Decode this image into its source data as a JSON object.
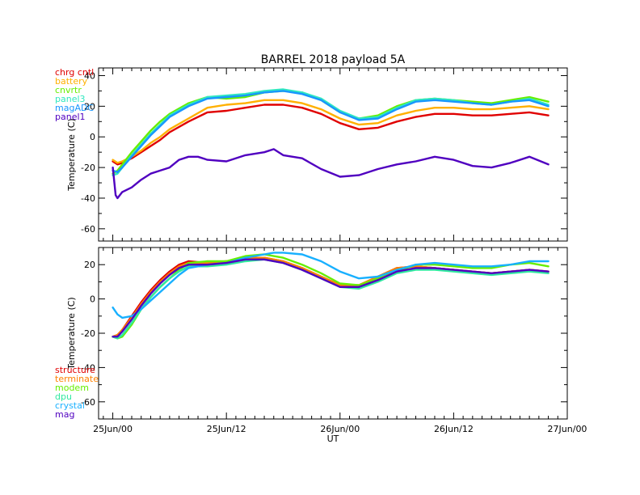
{
  "chart_data": [
    {
      "type": "line",
      "title": "BARREL 2018 payload 5A",
      "ylabel": "Temperature (C)",
      "xlabel": "",
      "x_ticks": [
        "25Jun/00",
        "25Jun/12",
        "26Jun/00",
        "26Jun/12",
        "27Jun/00"
      ],
      "y_ticks": [
        40,
        20,
        0,
        -20,
        -40,
        -60
      ],
      "ylim": [
        -68,
        45
      ],
      "xlim_hours": [
        -1.5,
        48
      ],
      "grid": false,
      "legend_position": "top-left",
      "series": [
        {
          "name": "chrg cntl",
          "color": "#e00000",
          "x": [
            0,
            0.5,
            1,
            2,
            3,
            4,
            5,
            6,
            8,
            10,
            12,
            14,
            16,
            18,
            20,
            22,
            24,
            26,
            28,
            30,
            32,
            34,
            36,
            38,
            40,
            42,
            44,
            46
          ],
          "y": [
            -16,
            -18,
            -17,
            -14,
            -10,
            -6,
            -2,
            3,
            10,
            16,
            17,
            19,
            21,
            21,
            19,
            15,
            9,
            5,
            6,
            10,
            13,
            15,
            15,
            14,
            14,
            15,
            16,
            14
          ]
        },
        {
          "name": "battery",
          "color": "#ffb000",
          "x": [
            0,
            0.5,
            1,
            2,
            3,
            4,
            5,
            6,
            8,
            10,
            12,
            14,
            16,
            18,
            20,
            22,
            24,
            26,
            28,
            30,
            32,
            34,
            36,
            38,
            40,
            42,
            44,
            46
          ],
          "y": [
            -15,
            -17,
            -16,
            -13,
            -9,
            -4,
            0,
            5,
            12,
            19,
            21,
            22,
            24,
            24,
            22,
            18,
            12,
            8,
            9,
            14,
            17,
            19,
            19,
            18,
            18,
            19,
            20,
            18
          ]
        },
        {
          "name": "cnvrtr",
          "color": "#66ee00",
          "x": [
            0,
            0.5,
            1,
            2,
            3,
            4,
            5,
            6,
            8,
            10,
            12,
            14,
            16,
            18,
            20,
            22,
            24,
            26,
            28,
            30,
            32,
            34,
            36,
            38,
            40,
            42,
            44,
            46
          ],
          "y": [
            -24,
            -22,
            -18,
            -10,
            -3,
            4,
            10,
            15,
            22,
            26,
            25,
            26,
            29,
            30,
            29,
            24,
            16,
            12,
            14,
            20,
            24,
            25,
            24,
            23,
            22,
            24,
            26,
            23
          ]
        },
        {
          "name": "panel3",
          "color": "#30e8c0",
          "x": [
            0,
            0.5,
            1,
            2,
            3,
            4,
            5,
            6,
            8,
            10,
            12,
            14,
            16,
            18,
            20,
            22,
            24,
            26,
            28,
            30,
            32,
            34,
            36,
            38,
            40,
            42,
            44,
            46
          ],
          "y": [
            -25,
            -24,
            -20,
            -12,
            -5,
            2,
            8,
            14,
            21,
            26,
            27,
            28,
            30,
            31,
            29,
            25,
            17,
            12,
            13,
            19,
            24,
            25,
            24,
            22,
            21,
            23,
            25,
            21
          ]
        },
        {
          "name": "magADC",
          "color": "#1896ff",
          "x": [
            0,
            0.5,
            1,
            2,
            3,
            4,
            5,
            6,
            8,
            10,
            12,
            14,
            16,
            18,
            20,
            22,
            24,
            26,
            28,
            30,
            32,
            34,
            36,
            38,
            40,
            42,
            44,
            46
          ],
          "y": [
            -22,
            -23,
            -20,
            -13,
            -6,
            1,
            7,
            13,
            20,
            25,
            26,
            27,
            29,
            30,
            28,
            24,
            16,
            11,
            12,
            18,
            23,
            24,
            23,
            22,
            21,
            23,
            24,
            20
          ]
        },
        {
          "name": "panel1",
          "color": "#5000c0",
          "x": [
            0,
            0.3,
            0.5,
            1,
            2,
            3,
            4,
            5,
            6,
            7,
            8,
            9,
            10,
            12,
            14,
            16,
            17,
            18,
            20,
            22,
            24,
            26,
            28,
            30,
            32,
            34,
            36,
            38,
            40,
            42,
            44,
            46
          ],
          "y": [
            -20,
            -38,
            -40,
            -36,
            -33,
            -28,
            -24,
            -22,
            -20,
            -15,
            -13,
            -13,
            -15,
            -16,
            -12,
            -10,
            -8,
            -12,
            -14,
            -21,
            -26,
            -25,
            -21,
            -18,
            -16,
            -13,
            -15,
            -19,
            -20,
            -17,
            -13,
            -18
          ]
        }
      ]
    },
    {
      "type": "line",
      "title": "",
      "ylabel": "Temperature (C)",
      "xlabel": "UT",
      "x_ticks": [
        "25Jun/00",
        "25Jun/12",
        "26Jun/00",
        "26Jun/12",
        "27Jun/00"
      ],
      "y_ticks": [
        20,
        0,
        -20,
        -40,
        -60
      ],
      "ylim": [
        -70,
        30
      ],
      "xlim_hours": [
        -1.5,
        48
      ],
      "grid": false,
      "legend_position": "bottom-left",
      "series": [
        {
          "name": "structure",
          "color": "#e00000",
          "x": [
            0,
            0.5,
            1,
            2,
            3,
            4,
            5,
            6,
            7,
            8,
            10,
            12,
            14,
            16,
            18,
            20,
            22,
            24,
            26,
            28,
            30,
            32,
            34,
            36,
            38,
            40,
            42,
            44,
            46
          ],
          "y": [
            -22,
            -21,
            -18,
            -10,
            -2,
            5,
            11,
            16,
            20,
            22,
            21,
            22,
            24,
            24,
            22,
            18,
            13,
            8,
            8,
            13,
            18,
            19,
            18,
            17,
            16,
            15,
            16,
            17,
            16
          ]
        },
        {
          "name": "terminate",
          "color": "#ff8000",
          "x": [
            0,
            0.5,
            1,
            2,
            3,
            4,
            5,
            6,
            7,
            8,
            10,
            12,
            14,
            16,
            18,
            20,
            22,
            24,
            26,
            28,
            30,
            32,
            34,
            36,
            38,
            40,
            42,
            44,
            46
          ],
          "y": [
            -22,
            -21,
            -18,
            -11,
            -3,
            4,
            10,
            15,
            19,
            21,
            21,
            22,
            24,
            24,
            22,
            18,
            13,
            8,
            8,
            13,
            18,
            19,
            18,
            17,
            16,
            15,
            16,
            17,
            16
          ]
        },
        {
          "name": "modem",
          "color": "#66ee00",
          "x": [
            0,
            0.5,
            1,
            2,
            3,
            4,
            5,
            6,
            7,
            8,
            10,
            12,
            14,
            16,
            18,
            20,
            22,
            24,
            26,
            28,
            30,
            32,
            34,
            36,
            38,
            40,
            42,
            44,
            46
          ],
          "y": [
            -22,
            -23,
            -22,
            -15,
            -6,
            1,
            7,
            12,
            17,
            21,
            22,
            22,
            25,
            26,
            24,
            20,
            15,
            9,
            8,
            12,
            16,
            20,
            20,
            19,
            18,
            18,
            20,
            21,
            19
          ]
        },
        {
          "name": "dpu",
          "color": "#30e8a0",
          "x": [
            0,
            0.5,
            1,
            2,
            3,
            4,
            5,
            6,
            7,
            8,
            10,
            12,
            14,
            16,
            18,
            20,
            22,
            24,
            26,
            28,
            30,
            32,
            34,
            36,
            38,
            40,
            42,
            44,
            46
          ],
          "y": [
            -22,
            -23,
            -21,
            -14,
            -6,
            1,
            7,
            12,
            16,
            19,
            19,
            20,
            22,
            23,
            21,
            17,
            12,
            7,
            6,
            10,
            15,
            17,
            17,
            16,
            15,
            14,
            15,
            16,
            15
          ]
        },
        {
          "name": "crystal",
          "color": "#18b0ff",
          "x": [
            0,
            0.5,
            1,
            2,
            3,
            4,
            5,
            6,
            7,
            8,
            10,
            12,
            14,
            16,
            17,
            18,
            20,
            22,
            24,
            26,
            28,
            30,
            32,
            34,
            36,
            38,
            40,
            42,
            44,
            46
          ],
          "y": [
            -5,
            -9,
            -11,
            -10,
            -6,
            -1,
            4,
            9,
            14,
            18,
            20,
            21,
            24,
            26,
            27,
            27,
            26,
            22,
            16,
            12,
            13,
            17,
            20,
            21,
            20,
            19,
            19,
            20,
            22,
            22
          ]
        },
        {
          "name": "mag",
          "color": "#5000c0",
          "x": [
            0,
            0.5,
            1,
            2,
            3,
            4,
            5,
            6,
            7,
            8,
            10,
            12,
            14,
            16,
            18,
            20,
            22,
            24,
            26,
            28,
            30,
            32,
            34,
            36,
            38,
            40,
            42,
            44,
            46
          ],
          "y": [
            -22,
            -22,
            -19,
            -12,
            -4,
            3,
            9,
            14,
            18,
            20,
            20,
            21,
            23,
            23,
            21,
            17,
            12,
            7,
            7,
            11,
            16,
            18,
            18,
            17,
            16,
            15,
            16,
            17,
            16
          ]
        }
      ]
    }
  ]
}
